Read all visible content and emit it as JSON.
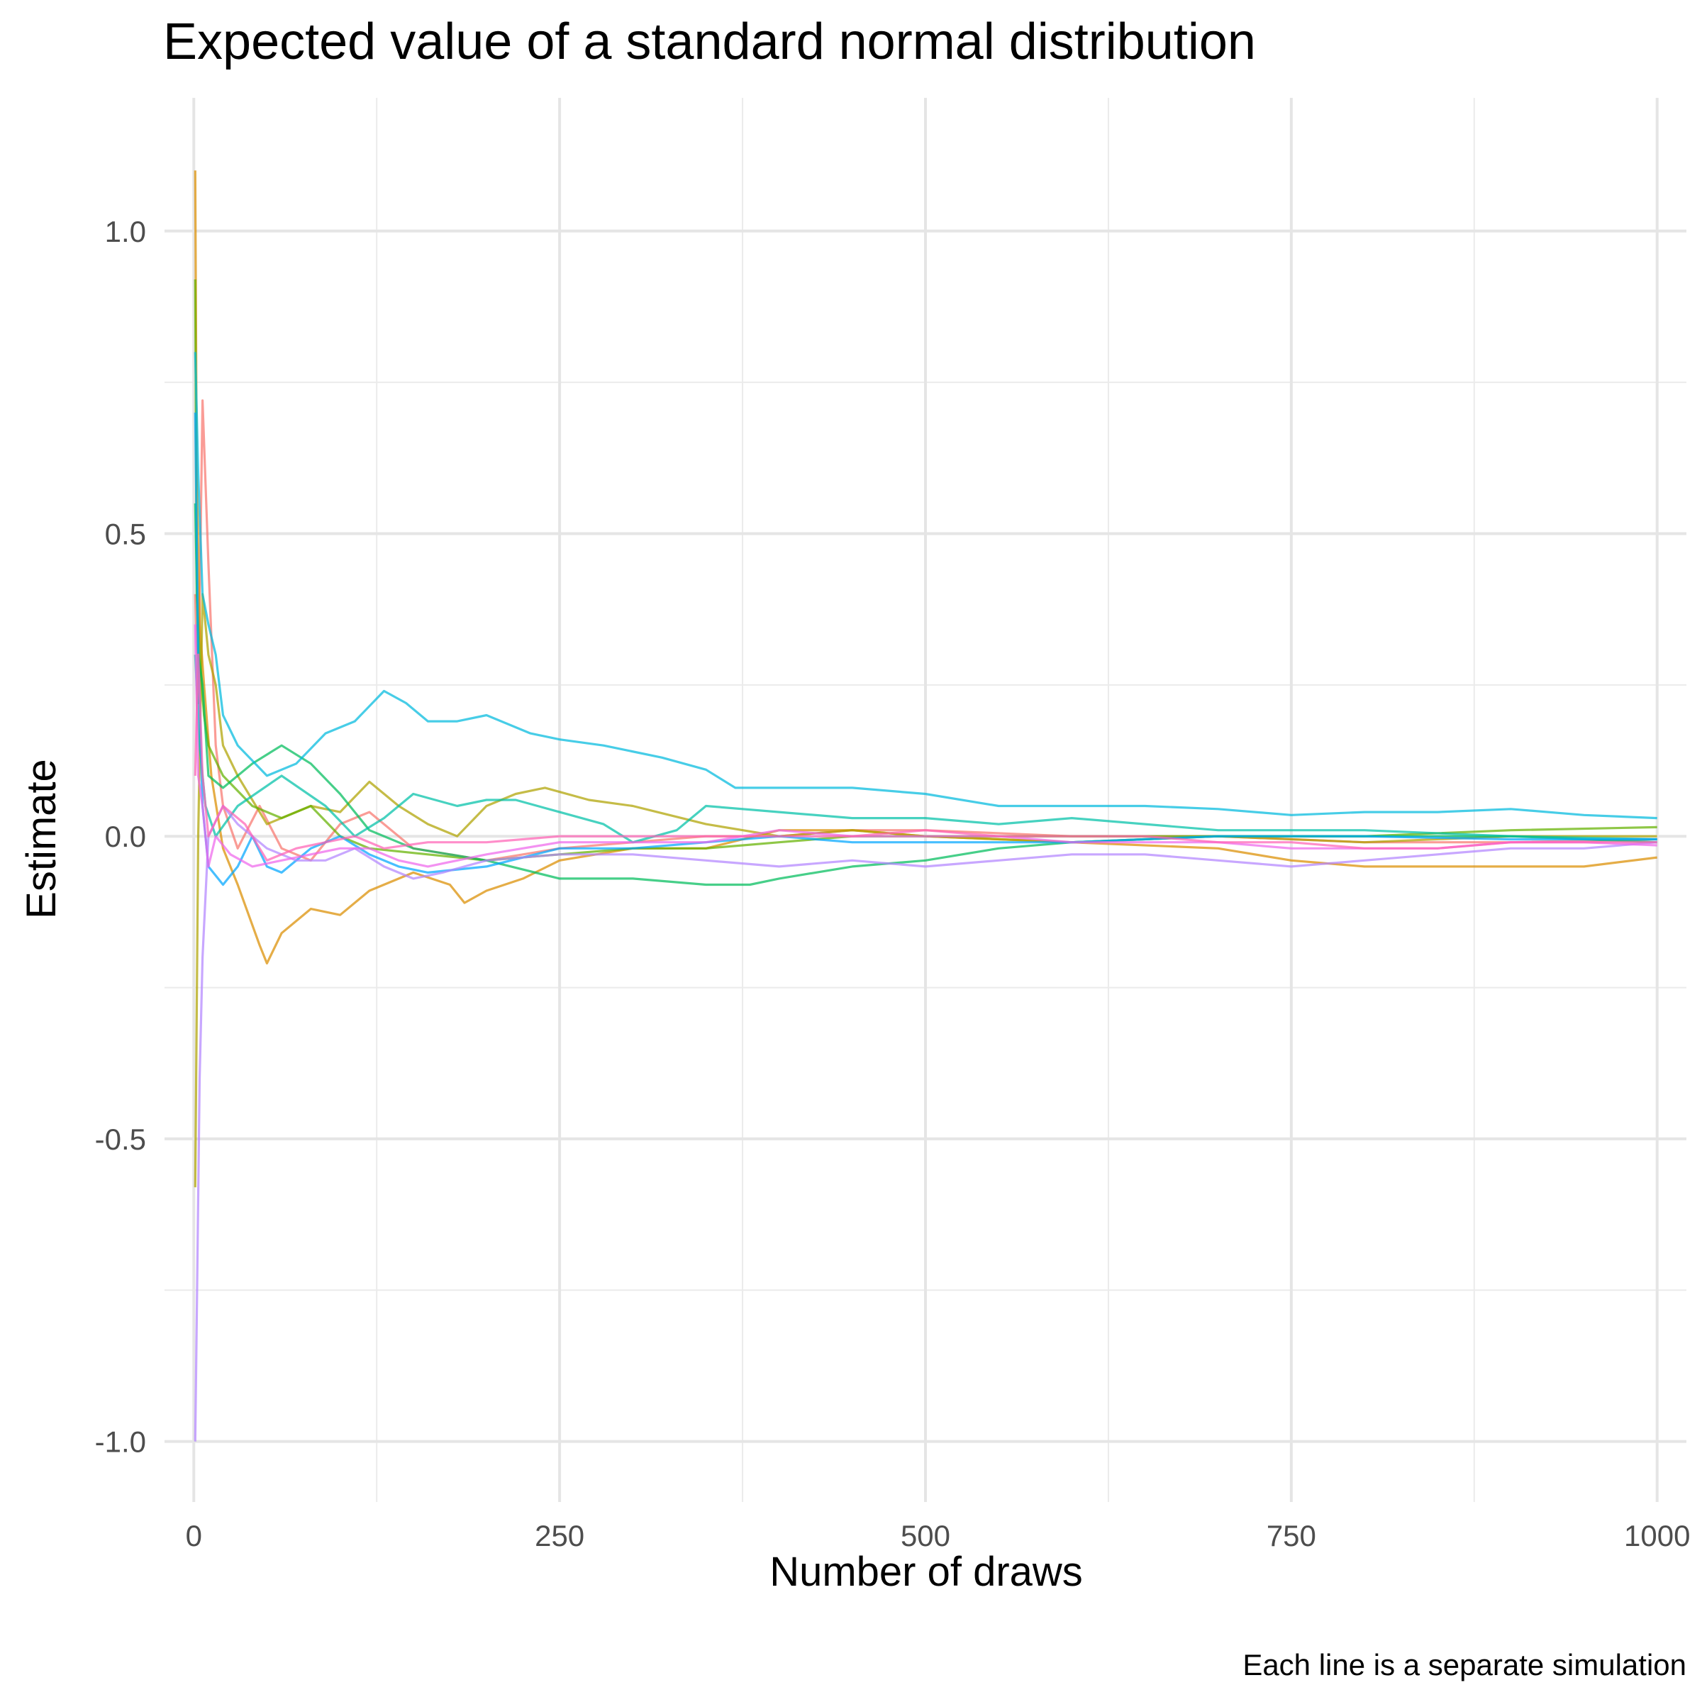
{
  "chart_data": {
    "type": "line",
    "title": "Expected value of a standard normal distribution",
    "xlabel": "Number of draws",
    "ylabel": "Estimate",
    "caption": "Each line is a separate simulation",
    "xlim": [
      -20,
      1020
    ],
    "ylim": [
      -1.1,
      1.22
    ],
    "x_ticks": [
      0,
      250,
      500,
      750,
      1000
    ],
    "x_tick_labels": [
      "0",
      "250",
      "500",
      "750",
      "1000"
    ],
    "y_ticks": [
      -1.0,
      -0.5,
      0.0,
      0.5,
      1.0
    ],
    "y_tick_labels": [
      "-1.0",
      "-0.5",
      "0.0",
      "0.5",
      "1.0"
    ],
    "grid": true,
    "legend": "none",
    "series": [
      {
        "color": "#F8766D",
        "points": [
          [
            1,
            0.4
          ],
          [
            3,
            0.22
          ],
          [
            6,
            0.72
          ],
          [
            10,
            0.45
          ],
          [
            15,
            0.15
          ],
          [
            20,
            0.05
          ],
          [
            30,
            -0.02
          ],
          [
            45,
            0.05
          ],
          [
            60,
            -0.02
          ],
          [
            80,
            -0.04
          ],
          [
            100,
            0.02
          ],
          [
            120,
            0.04
          ],
          [
            150,
            -0.02
          ],
          [
            200,
            -0.04
          ],
          [
            250,
            -0.02
          ],
          [
            300,
            -0.01
          ],
          [
            350,
            0.0
          ],
          [
            400,
            0.0
          ],
          [
            450,
            0.01
          ],
          [
            500,
            0.01
          ],
          [
            600,
            0.0
          ],
          [
            700,
            0.0
          ],
          [
            800,
            -0.01
          ],
          [
            900,
            -0.01
          ],
          [
            1000,
            -0.005
          ]
        ]
      },
      {
        "color": "#DB8E00",
        "points": [
          [
            1,
            1.1
          ],
          [
            2,
            0.6
          ],
          [
            4,
            0.35
          ],
          [
            7,
            0.25
          ],
          [
            12,
            0.1
          ],
          [
            20,
            -0.02
          ],
          [
            30,
            -0.08
          ],
          [
            45,
            -0.18
          ],
          [
            50,
            -0.21
          ],
          [
            60,
            -0.16
          ],
          [
            80,
            -0.12
          ],
          [
            100,
            -0.13
          ],
          [
            120,
            -0.09
          ],
          [
            150,
            -0.06
          ],
          [
            175,
            -0.08
          ],
          [
            185,
            -0.11
          ],
          [
            200,
            -0.09
          ],
          [
            225,
            -0.07
          ],
          [
            250,
            -0.04
          ],
          [
            300,
            -0.02
          ],
          [
            350,
            -0.02
          ],
          [
            400,
            0.01
          ],
          [
            450,
            0.01
          ],
          [
            500,
            0.0
          ],
          [
            600,
            -0.01
          ],
          [
            700,
            -0.02
          ],
          [
            750,
            -0.04
          ],
          [
            800,
            -0.05
          ],
          [
            850,
            -0.05
          ],
          [
            900,
            -0.05
          ],
          [
            950,
            -0.05
          ],
          [
            1000,
            -0.035
          ]
        ]
      },
      {
        "color": "#AEA200",
        "points": [
          [
            1,
            -0.58
          ],
          [
            3,
            0.0
          ],
          [
            6,
            0.4
          ],
          [
            10,
            0.3
          ],
          [
            15,
            0.25
          ],
          [
            20,
            0.15
          ],
          [
            30,
            0.1
          ],
          [
            50,
            0.02
          ],
          [
            80,
            0.05
          ],
          [
            100,
            0.04
          ],
          [
            120,
            0.09
          ],
          [
            140,
            0.05
          ],
          [
            160,
            0.02
          ],
          [
            180,
            0.0
          ],
          [
            200,
            0.05
          ],
          [
            220,
            0.07
          ],
          [
            240,
            0.08
          ],
          [
            270,
            0.06
          ],
          [
            300,
            0.05
          ],
          [
            350,
            0.02
          ],
          [
            400,
            0.0
          ],
          [
            450,
            0.01
          ],
          [
            500,
            0.0
          ],
          [
            600,
            -0.01
          ],
          [
            700,
            0.0
          ],
          [
            800,
            -0.01
          ],
          [
            900,
            0.0
          ],
          [
            1000,
            0.0
          ]
        ]
      },
      {
        "color": "#64B200",
        "points": [
          [
            1,
            0.92
          ],
          [
            2,
            0.4
          ],
          [
            4,
            0.3
          ],
          [
            7,
            0.2
          ],
          [
            10,
            0.15
          ],
          [
            20,
            0.1
          ],
          [
            40,
            0.05
          ],
          [
            60,
            0.03
          ],
          [
            80,
            0.05
          ],
          [
            100,
            0.0
          ],
          [
            120,
            -0.02
          ],
          [
            160,
            -0.03
          ],
          [
            200,
            -0.04
          ],
          [
            250,
            -0.03
          ],
          [
            300,
            -0.02
          ],
          [
            350,
            -0.02
          ],
          [
            400,
            -0.01
          ],
          [
            450,
            0.0
          ],
          [
            500,
            0.0
          ],
          [
            600,
            0.0
          ],
          [
            700,
            0.0
          ],
          [
            800,
            0.0
          ],
          [
            900,
            0.01
          ],
          [
            1000,
            0.015
          ]
        ]
      },
      {
        "color": "#00BD5C",
        "points": [
          [
            1,
            0.55
          ],
          [
            3,
            0.3
          ],
          [
            6,
            0.25
          ],
          [
            10,
            0.1
          ],
          [
            20,
            0.08
          ],
          [
            40,
            0.12
          ],
          [
            60,
            0.15
          ],
          [
            80,
            0.12
          ],
          [
            100,
            0.07
          ],
          [
            120,
            0.01
          ],
          [
            150,
            -0.02
          ],
          [
            200,
            -0.04
          ],
          [
            250,
            -0.07
          ],
          [
            300,
            -0.07
          ],
          [
            350,
            -0.08
          ],
          [
            380,
            -0.08
          ],
          [
            400,
            -0.07
          ],
          [
            450,
            -0.05
          ],
          [
            500,
            -0.04
          ],
          [
            550,
            -0.02
          ],
          [
            600,
            -0.01
          ],
          [
            700,
            0.0
          ],
          [
            800,
            0.0
          ],
          [
            900,
            0.0
          ],
          [
            1000,
            -0.01
          ]
        ]
      },
      {
        "color": "#00C1A7",
        "points": [
          [
            1,
            0.3
          ],
          [
            4,
            0.15
          ],
          [
            8,
            0.05
          ],
          [
            15,
            0.0
          ],
          [
            30,
            0.05
          ],
          [
            60,
            0.1
          ],
          [
            90,
            0.05
          ],
          [
            110,
            0.0
          ],
          [
            130,
            0.03
          ],
          [
            150,
            0.07
          ],
          [
            180,
            0.05
          ],
          [
            200,
            0.06
          ],
          [
            220,
            0.06
          ],
          [
            250,
            0.04
          ],
          [
            280,
            0.02
          ],
          [
            300,
            -0.01
          ],
          [
            330,
            0.01
          ],
          [
            350,
            0.05
          ],
          [
            400,
            0.04
          ],
          [
            450,
            0.03
          ],
          [
            500,
            0.03
          ],
          [
            550,
            0.02
          ],
          [
            600,
            0.03
          ],
          [
            700,
            0.01
          ],
          [
            800,
            0.01
          ],
          [
            900,
            0.0
          ],
          [
            1000,
            -0.005
          ]
        ]
      },
      {
        "color": "#00BADE",
        "points": [
          [
            1,
            0.8
          ],
          [
            3,
            0.6
          ],
          [
            6,
            0.4
          ],
          [
            10,
            0.35
          ],
          [
            15,
            0.3
          ],
          [
            20,
            0.2
          ],
          [
            30,
            0.15
          ],
          [
            50,
            0.1
          ],
          [
            70,
            0.12
          ],
          [
            90,
            0.17
          ],
          [
            110,
            0.19
          ],
          [
            130,
            0.24
          ],
          [
            145,
            0.22
          ],
          [
            160,
            0.19
          ],
          [
            180,
            0.19
          ],
          [
            200,
            0.2
          ],
          [
            230,
            0.17
          ],
          [
            250,
            0.16
          ],
          [
            280,
            0.15
          ],
          [
            320,
            0.13
          ],
          [
            350,
            0.11
          ],
          [
            370,
            0.08
          ],
          [
            400,
            0.08
          ],
          [
            450,
            0.08
          ],
          [
            500,
            0.07
          ],
          [
            550,
            0.05
          ],
          [
            600,
            0.05
          ],
          [
            650,
            0.05
          ],
          [
            700,
            0.045
          ],
          [
            750,
            0.035
          ],
          [
            800,
            0.04
          ],
          [
            850,
            0.04
          ],
          [
            900,
            0.045
          ],
          [
            950,
            0.035
          ],
          [
            1000,
            0.03
          ]
        ]
      },
      {
        "color": "#00A6FF",
        "points": [
          [
            1,
            0.7
          ],
          [
            3,
            0.3
          ],
          [
            6,
            0.05
          ],
          [
            10,
            -0.05
          ],
          [
            20,
            -0.08
          ],
          [
            30,
            -0.05
          ],
          [
            40,
            0.0
          ],
          [
            50,
            -0.05
          ],
          [
            60,
            -0.06
          ],
          [
            80,
            -0.02
          ],
          [
            100,
            0.0
          ],
          [
            120,
            -0.03
          ],
          [
            140,
            -0.05
          ],
          [
            160,
            -0.06
          ],
          [
            200,
            -0.05
          ],
          [
            250,
            -0.02
          ],
          [
            300,
            -0.02
          ],
          [
            350,
            -0.01
          ],
          [
            400,
            0.0
          ],
          [
            450,
            -0.01
          ],
          [
            500,
            -0.01
          ],
          [
            600,
            -0.01
          ],
          [
            700,
            0.0
          ],
          [
            800,
            0.0
          ],
          [
            900,
            -0.005
          ],
          [
            1000,
            -0.005
          ]
        ]
      },
      {
        "color": "#B385FF",
        "points": [
          [
            1,
            -1.0
          ],
          [
            2,
            -0.8
          ],
          [
            4,
            -0.4
          ],
          [
            6,
            -0.2
          ],
          [
            10,
            0.0
          ],
          [
            20,
            0.05
          ],
          [
            30,
            0.02
          ],
          [
            50,
            -0.02
          ],
          [
            70,
            -0.04
          ],
          [
            90,
            -0.04
          ],
          [
            110,
            -0.02
          ],
          [
            130,
            -0.05
          ],
          [
            150,
            -0.07
          ],
          [
            170,
            -0.06
          ],
          [
            200,
            -0.04
          ],
          [
            250,
            -0.03
          ],
          [
            300,
            -0.03
          ],
          [
            350,
            -0.04
          ],
          [
            400,
            -0.05
          ],
          [
            450,
            -0.04
          ],
          [
            500,
            -0.05
          ],
          [
            550,
            -0.04
          ],
          [
            600,
            -0.03
          ],
          [
            650,
            -0.03
          ],
          [
            700,
            -0.04
          ],
          [
            750,
            -0.05
          ],
          [
            800,
            -0.04
          ],
          [
            850,
            -0.03
          ],
          [
            900,
            -0.02
          ],
          [
            950,
            -0.02
          ],
          [
            1000,
            -0.01
          ]
        ]
      },
      {
        "color": "#EF67EB",
        "points": [
          [
            1,
            0.35
          ],
          [
            3,
            0.1
          ],
          [
            6,
            0.05
          ],
          [
            10,
            -0.05
          ],
          [
            15,
            0.0
          ],
          [
            25,
            -0.03
          ],
          [
            40,
            -0.05
          ],
          [
            60,
            -0.04
          ],
          [
            80,
            -0.03
          ],
          [
            100,
            -0.02
          ],
          [
            120,
            -0.02
          ],
          [
            140,
            -0.04
          ],
          [
            160,
            -0.05
          ],
          [
            200,
            -0.03
          ],
          [
            250,
            -0.01
          ],
          [
            300,
            -0.01
          ],
          [
            350,
            -0.01
          ],
          [
            400,
            0.01
          ],
          [
            450,
            0.0
          ],
          [
            500,
            0.0
          ],
          [
            550,
            0.0
          ],
          [
            600,
            -0.01
          ],
          [
            650,
            -0.01
          ],
          [
            700,
            -0.01
          ],
          [
            750,
            -0.02
          ],
          [
            800,
            -0.02
          ],
          [
            850,
            -0.02
          ],
          [
            900,
            -0.01
          ],
          [
            950,
            -0.01
          ],
          [
            1000,
            -0.015
          ]
        ]
      },
      {
        "color": "#FF63B6",
        "points": [
          [
            1,
            0.1
          ],
          [
            3,
            0.3
          ],
          [
            6,
            0.1
          ],
          [
            10,
            0.0
          ],
          [
            20,
            0.05
          ],
          [
            35,
            0.02
          ],
          [
            50,
            -0.04
          ],
          [
            70,
            -0.02
          ],
          [
            90,
            -0.01
          ],
          [
            110,
            0.0
          ],
          [
            130,
            -0.02
          ],
          [
            160,
            -0.01
          ],
          [
            200,
            -0.01
          ],
          [
            250,
            0.0
          ],
          [
            300,
            0.0
          ],
          [
            350,
            0.0
          ],
          [
            400,
            0.0
          ],
          [
            450,
            0.0
          ],
          [
            500,
            0.01
          ],
          [
            550,
            0.0
          ],
          [
            600,
            0.0
          ],
          [
            650,
            0.0
          ],
          [
            700,
            -0.01
          ],
          [
            750,
            -0.01
          ],
          [
            800,
            -0.02
          ],
          [
            850,
            -0.02
          ],
          [
            900,
            -0.01
          ],
          [
            950,
            -0.01
          ],
          [
            1000,
            -0.01
          ]
        ]
      }
    ]
  }
}
